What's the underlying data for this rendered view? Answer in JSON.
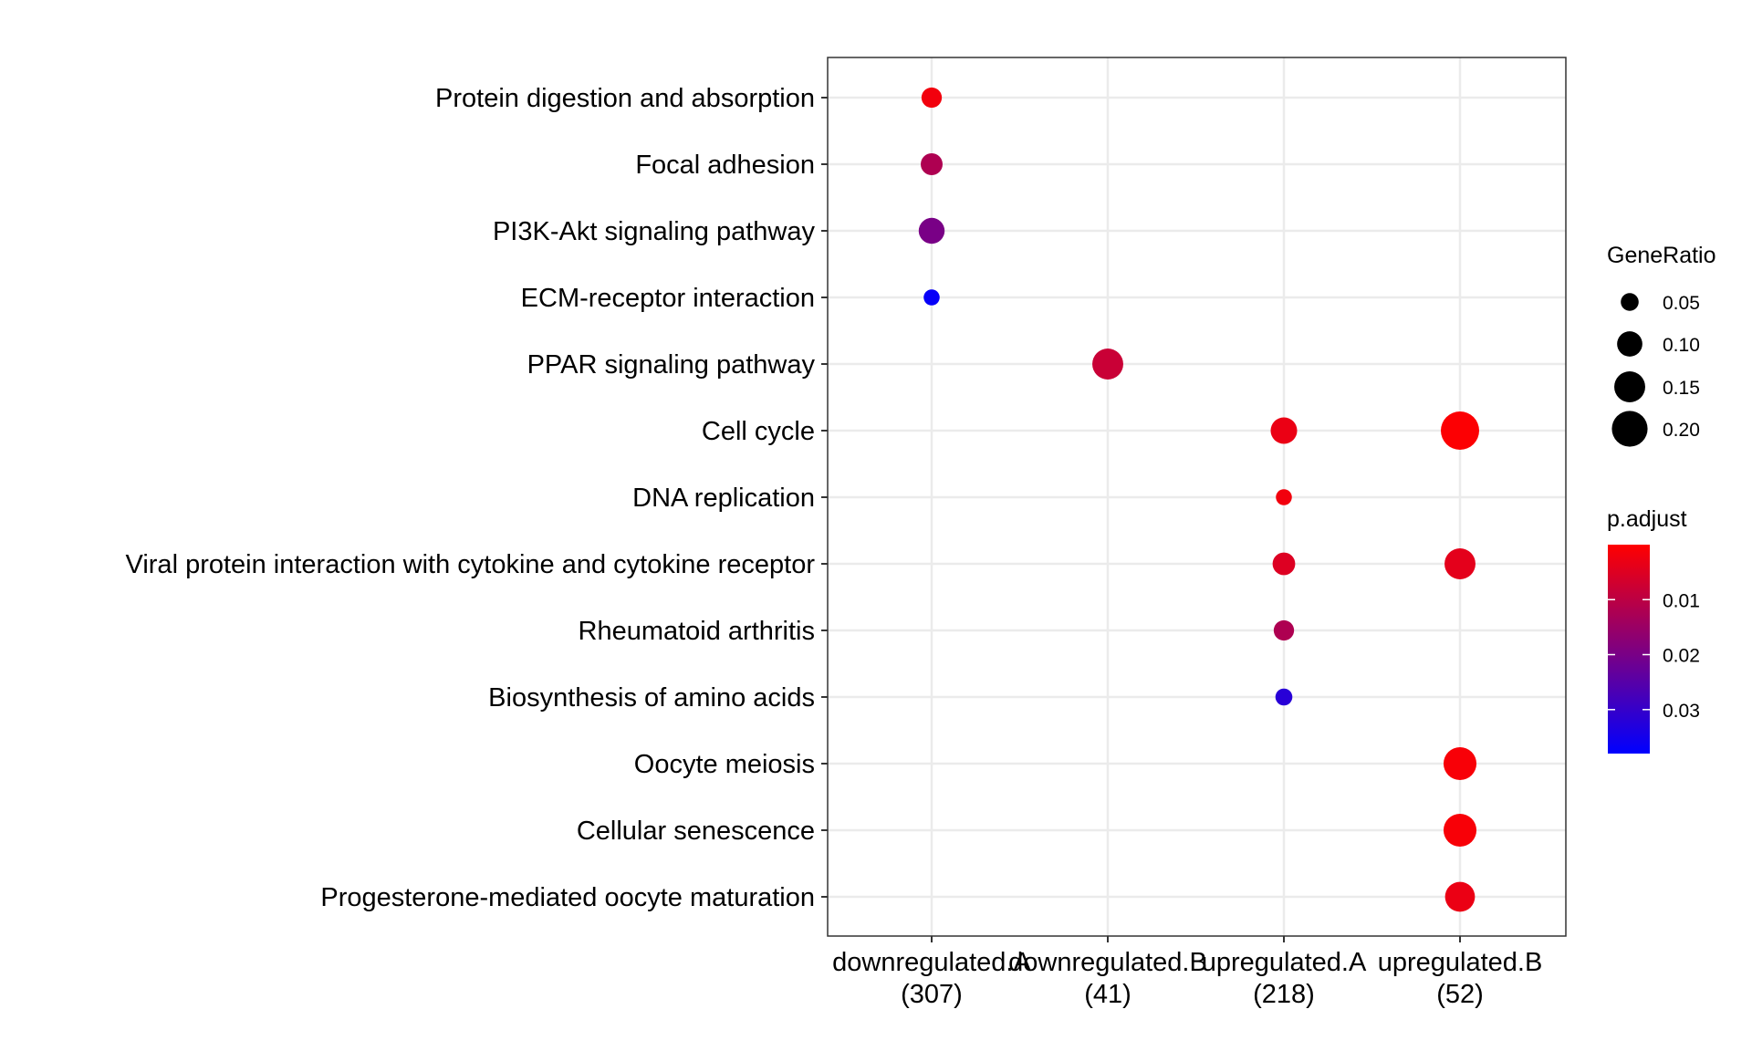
{
  "chart_data": {
    "type": "scatter",
    "categories_x": [
      {
        "line1": "downregulated.A",
        "line2": "(307)"
      },
      {
        "line1": "downregulated.B",
        "line2": "(41)"
      },
      {
        "line1": "upregulated.A",
        "line2": "(218)"
      },
      {
        "line1": "upregulated.B",
        "line2": "(52)"
      }
    ],
    "categories_y": [
      "Protein digestion and absorption",
      "Focal adhesion",
      "PI3K-Akt signaling pathway",
      "ECM-receptor interaction",
      "PPAR signaling pathway",
      "Cell cycle",
      "DNA replication",
      "Viral protein interaction with cytokine and cytokine receptor",
      "Rheumatoid arthritis",
      "Biosynthesis of amino acids",
      "Oocyte meiosis",
      "Cellular senescence",
      "Progesterone-mediated oocyte maturation"
    ],
    "points": [
      {
        "x": "downregulated.A",
        "y": "Protein digestion and absorption",
        "gene_ratio": 0.065,
        "p_adjust": 0.002
      },
      {
        "x": "downregulated.A",
        "y": "Focal adhesion",
        "gene_ratio": 0.075,
        "p_adjust": 0.012
      },
      {
        "x": "downregulated.A",
        "y": "PI3K-Akt signaling pathway",
        "gene_ratio": 0.105,
        "p_adjust": 0.02
      },
      {
        "x": "downregulated.A",
        "y": "ECM-receptor interaction",
        "gene_ratio": 0.04,
        "p_adjust": 0.037
      },
      {
        "x": "downregulated.B",
        "y": "PPAR signaling pathway",
        "gene_ratio": 0.15,
        "p_adjust": 0.008
      },
      {
        "x": "upregulated.A",
        "y": "Cell cycle",
        "gene_ratio": 0.11,
        "p_adjust": 0.003
      },
      {
        "x": "upregulated.A",
        "y": "DNA replication",
        "gene_ratio": 0.04,
        "p_adjust": 0.002
      },
      {
        "x": "upregulated.A",
        "y": "Viral protein interaction with cytokine and cytokine receptor",
        "gene_ratio": 0.08,
        "p_adjust": 0.005
      },
      {
        "x": "upregulated.A",
        "y": "Rheumatoid arthritis",
        "gene_ratio": 0.065,
        "p_adjust": 0.012
      },
      {
        "x": "upregulated.A",
        "y": "Biosynthesis of amino acids",
        "gene_ratio": 0.045,
        "p_adjust": 0.032
      },
      {
        "x": "upregulated.B",
        "y": "Cell cycle",
        "gene_ratio": 0.23,
        "p_adjust": 0.0005
      },
      {
        "x": "upregulated.B",
        "y": "Viral protein interaction with cytokine and cytokine receptor",
        "gene_ratio": 0.15,
        "p_adjust": 0.004
      },
      {
        "x": "upregulated.B",
        "y": "Oocyte meiosis",
        "gene_ratio": 0.17,
        "p_adjust": 0.001
      },
      {
        "x": "upregulated.B",
        "y": "Cellular senescence",
        "gene_ratio": 0.17,
        "p_adjust": 0.001
      },
      {
        "x": "upregulated.B",
        "y": "Progesterone-mediated oocyte maturation",
        "gene_ratio": 0.14,
        "p_adjust": 0.003
      }
    ],
    "size_legend": {
      "title": "GeneRatio",
      "values": [
        0.05,
        0.1,
        0.15,
        0.2
      ],
      "labels": [
        "0.05",
        "0.10",
        "0.15",
        "0.20"
      ]
    },
    "color_legend": {
      "title": "p.adjust",
      "range": [
        0.0,
        0.038
      ],
      "ticks": [
        0.01,
        0.02,
        0.03
      ],
      "tick_labels": [
        "0.01",
        "0.02",
        "0.03"
      ],
      "low_color": "#ff0000",
      "high_color": "#0000ff"
    },
    "grid": true,
    "legend_position": "right"
  }
}
